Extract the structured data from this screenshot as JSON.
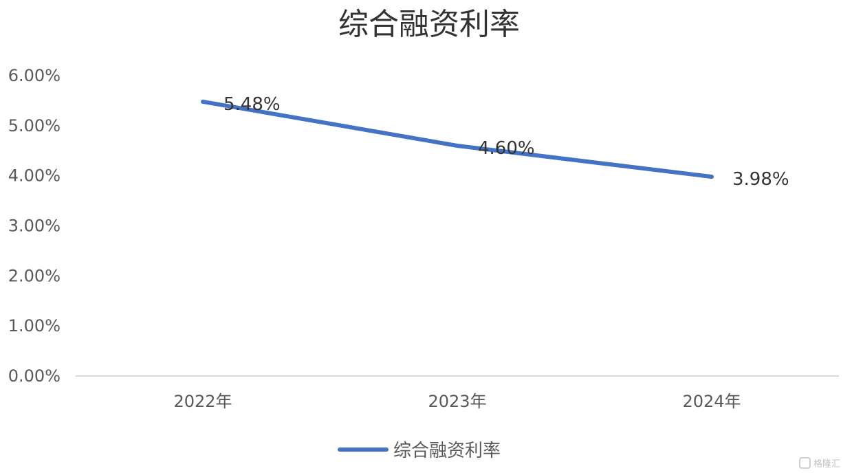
{
  "chart_data": {
    "type": "line",
    "title": "综合融资利率",
    "categories": [
      "2022年",
      "2023年",
      "2024年"
    ],
    "series": [
      {
        "name": "综合融资利率",
        "values": [
          5.48,
          4.6,
          3.98
        ],
        "data_labels": [
          "5.48%",
          "4.60%",
          "3.98%"
        ],
        "color": "#4472C4"
      }
    ],
    "yticks": [
      "0.00%",
      "1.00%",
      "2.00%",
      "3.00%",
      "4.00%",
      "5.00%",
      "6.00%"
    ],
    "ylim": [
      0,
      6
    ],
    "xlabel": "",
    "ylabel": "",
    "grid": false,
    "legend": "bottom"
  },
  "watermark": {
    "text": "格隆汇",
    "icon": "g-logo-icon"
  },
  "colors": {
    "axis": "#d9d9d9",
    "text": "#595959",
    "title": "#333333",
    "series": "#4472C4"
  }
}
